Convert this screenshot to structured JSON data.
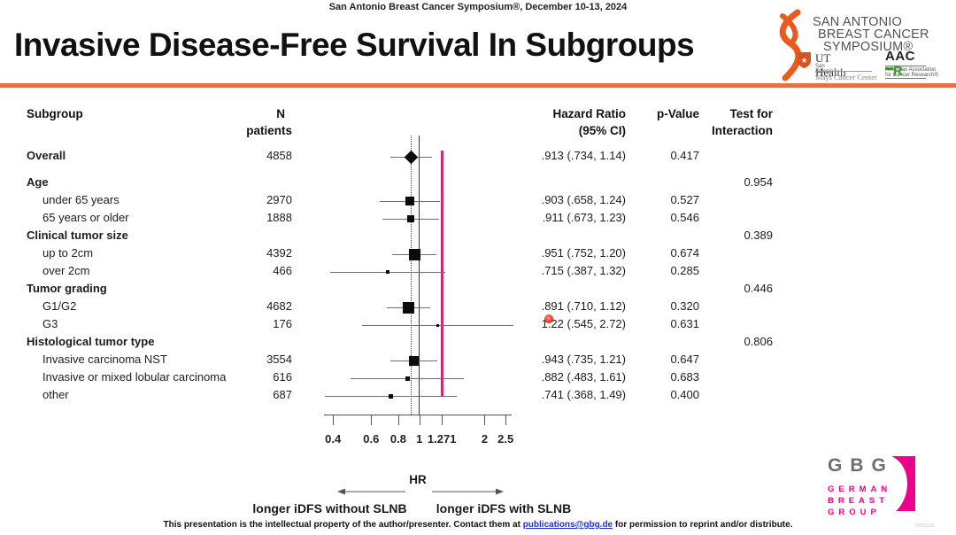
{
  "slide": {
    "symposium_line": "San Antonio Breast Cancer Symposium®, December 10-13, 2024",
    "title": "Invasive Disease-Free Survival In Subgroups"
  },
  "logos": {
    "sabcs_lines": [
      "SAN ANTONIO",
      "BREAST CANCER",
      "SYMPOSIUM®"
    ],
    "ut_health": {
      "name": "UT Health",
      "sub": "San Antonio",
      "center": "Mays Cancer Center"
    },
    "aacr": {
      "black_letters": "AAC",
      "green_letter": "R",
      "sub1": "American Association",
      "sub2": "for Cancer Research®"
    },
    "gbg": {
      "abbr": "GBG",
      "words": [
        "GERMAN",
        "BREAST",
        "GROUP"
      ],
      "pink": "#ec008c"
    }
  },
  "chart_data": {
    "type": "forest",
    "title": "Invasive Disease-Free Survival In Subgroups",
    "columns": {
      "subgroup": "Subgroup",
      "n_line1": "N",
      "n_line2": "patients",
      "hr_line1": "Hazard Ratio",
      "hr_line2": "(95% CI)",
      "p": "p-Value",
      "int_line1": "Test for",
      "int_line2": "Interaction"
    },
    "x_axis": {
      "scale": "log",
      "ticks": [
        0.4,
        0.6,
        0.8,
        1,
        1.271,
        2,
        2.5
      ],
      "tick_labels": [
        "0.4",
        "0.6",
        "0.8",
        "1",
        "1.271",
        "2",
        "2.5"
      ],
      "label": "HR"
    },
    "reference_lines": [
      {
        "hr": 0.913,
        "style": "dotted",
        "meaning": "overall estimate"
      },
      {
        "hr": 1.0,
        "style": "solid",
        "meaning": "no effect"
      },
      {
        "hr": 1.271,
        "style": "solid",
        "color": "#c62d78",
        "meaning": "non-inferiority margin"
      }
    ],
    "rows": [
      {
        "label": "Overall",
        "header": true,
        "n": 4858,
        "hr": 0.913,
        "lo": 0.734,
        "hi": 1.14,
        "hr_text": ".913 (.734, 1.14)",
        "p": "0.417",
        "marker": "diamond"
      },
      {
        "label": "Age",
        "header": true,
        "interaction": "0.954"
      },
      {
        "label": "under 65 years",
        "n": 2970,
        "hr": 0.903,
        "lo": 0.658,
        "hi": 1.24,
        "hr_text": ".903 (.658, 1.24)",
        "p": "0.527",
        "marker": "square"
      },
      {
        "label": "65 years or older",
        "n": 1888,
        "hr": 0.911,
        "lo": 0.673,
        "hi": 1.23,
        "hr_text": ".911 (.673, 1.23)",
        "p": "0.546",
        "marker": "square"
      },
      {
        "label": "Clinical tumor size",
        "header": true,
        "interaction": "0.389"
      },
      {
        "label": "up to 2cm",
        "n": 4392,
        "hr": 0.951,
        "lo": 0.752,
        "hi": 1.2,
        "hr_text": ".951 (.752, 1.20)",
        "p": "0.674",
        "marker": "square"
      },
      {
        "label": "over 2cm",
        "n": 466,
        "hr": 0.715,
        "lo": 0.387,
        "hi": 1.32,
        "hr_text": ".715 (.387, 1.32)",
        "p": "0.285",
        "marker": "square"
      },
      {
        "label": "Tumor grading",
        "header": true,
        "interaction": "0.446"
      },
      {
        "label": "G1/G2",
        "n": 4682,
        "hr": 0.891,
        "lo": 0.71,
        "hi": 1.12,
        "hr_text": ".891 (.710, 1.12)",
        "p": "0.320",
        "marker": "square"
      },
      {
        "label": "G3",
        "n": 176,
        "hr": 1.22,
        "lo": 0.545,
        "hi": 2.72,
        "hr_text": "1.22 (.545, 2.72)",
        "p": "0.631",
        "marker": "square"
      },
      {
        "label": "Histological tumor type",
        "header": true,
        "interaction": "0.806"
      },
      {
        "label": "Invasive carcinoma NST",
        "n": 3554,
        "hr": 0.943,
        "lo": 0.735,
        "hi": 1.21,
        "hr_text": ".943 (.735, 1.21)",
        "p": "0.647",
        "marker": "square"
      },
      {
        "label": "Invasive or mixed lobular carcinoma",
        "n": 616,
        "hr": 0.882,
        "lo": 0.483,
        "hi": 1.61,
        "hr_text": ".882 (.483, 1.61)",
        "p": "0.683",
        "marker": "square"
      },
      {
        "label": "other",
        "n": 687,
        "hr": 0.741,
        "lo": 0.368,
        "hi": 1.49,
        "hr_text": ".741 (.368, 1.49)",
        "p": "0.400",
        "marker": "square"
      }
    ],
    "hr_label": "HR",
    "direction_left": "longer iDFS without SLNB",
    "direction_right": "longer iDFS with SLNB"
  },
  "footer": {
    "prefix": "This presentation is the intellectual property of the author/presenter. Contact them at ",
    "link": "publications@gbg.de",
    "suffix": " for permission to reprint and/or distribute."
  },
  "misc": {
    "corner_code": "24201110"
  }
}
